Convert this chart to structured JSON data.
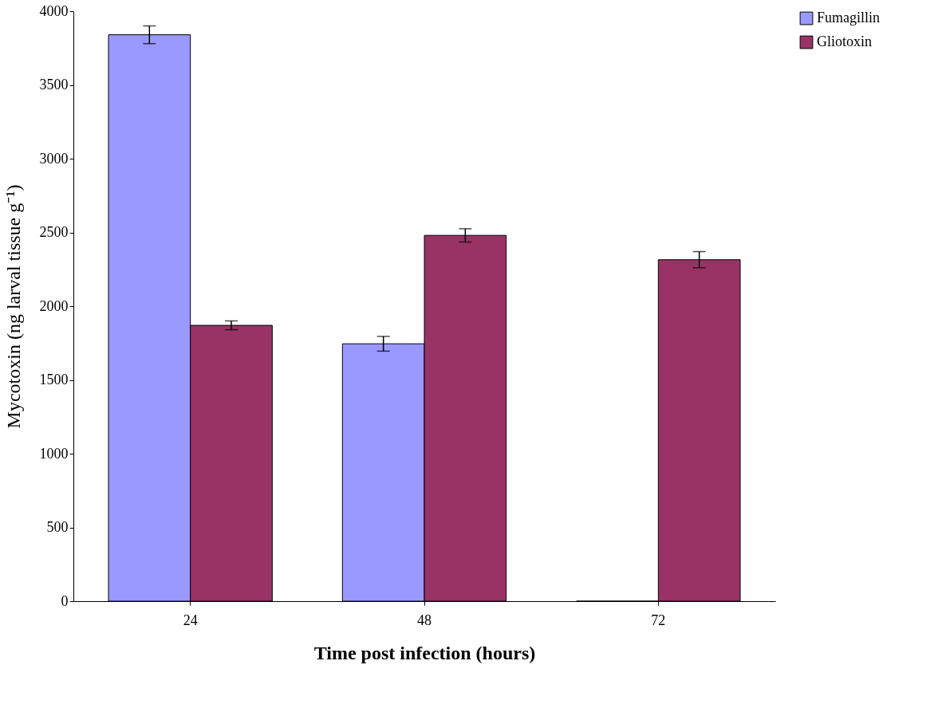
{
  "chart_data": {
    "type": "bar",
    "xlabel": "Time post infection (hours)",
    "ylabel": "Mycotoxin (ng larval tissue g⁻¹)",
    "categories": [
      "24",
      "48",
      "72"
    ],
    "series": [
      {
        "name": "Fumagillin",
        "color": "#9999ff",
        "values": [
          3840,
          1745,
          0
        ],
        "errors": [
          60,
          50,
          null
        ]
      },
      {
        "name": "Gliotoxin",
        "color": "#993366",
        "values": [
          1870,
          2480,
          2315
        ],
        "errors": [
          30,
          45,
          55
        ]
      }
    ],
    "ylim": [
      0,
      4000
    ],
    "yticks": [
      0,
      500,
      1000,
      1500,
      2000,
      2500,
      3000,
      3500,
      4000
    ],
    "grid": false,
    "legend": "right"
  }
}
